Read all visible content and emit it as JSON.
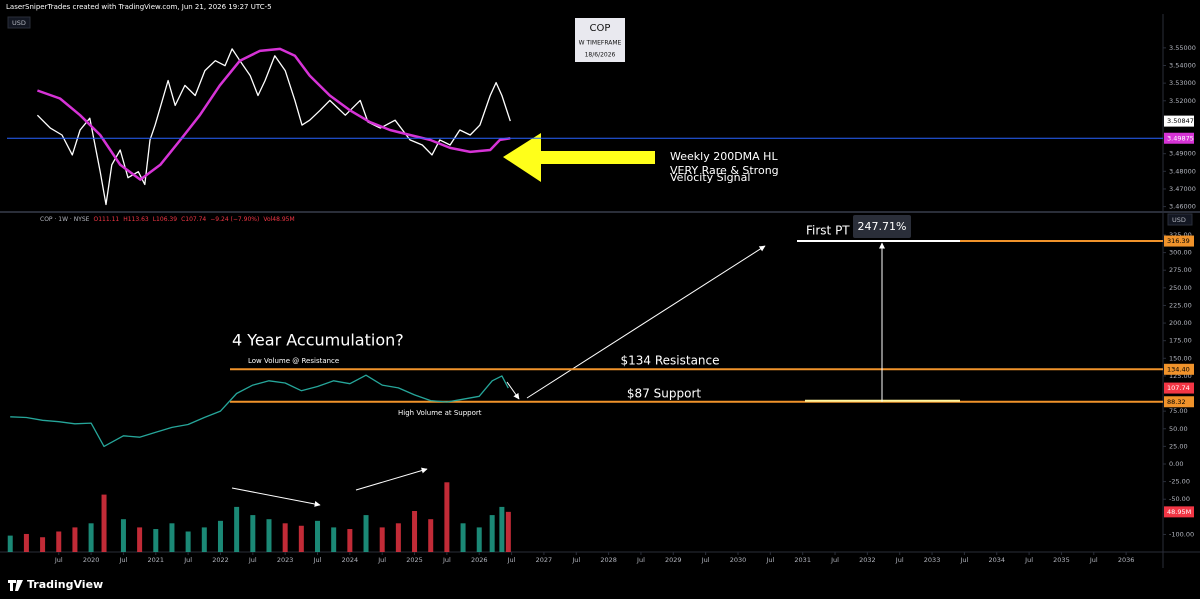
{
  "header": "LaserSniperTrades created with TradingView.com, Jun 21, 2026 19:27 UTC-5",
  "footer": "TradingView",
  "chart_data": [
    {
      "type": "line",
      "currency": "USD",
      "title": "COP",
      "subtitle": "W TIMEFRAME",
      "date_label": "18/6/2026",
      "annotations": [
        "Weekly 200DMA HL",
        "VERY Rare & Strong",
        "Velocity Signal"
      ],
      "xlim": [
        2018.7,
        2036.57
      ],
      "ylim": [
        3.4575,
        3.5675
      ],
      "yticks": [
        {
          "value": 3.46,
          "label": "3.46000"
        },
        {
          "value": 3.47,
          "label": "3.47000"
        },
        {
          "value": 3.48,
          "label": "3.48000"
        },
        {
          "value": 3.49,
          "label": "3.49000"
        },
        {
          "value": 3.52,
          "label": "3.52000"
        },
        {
          "value": 3.53,
          "label": "3.53000"
        },
        {
          "value": 3.54,
          "label": "3.54000"
        },
        {
          "value": 3.55,
          "label": "3.55000"
        }
      ],
      "baseline_color": "#2962ff",
      "series": [
        {
          "color": "#ffffff",
          "x": [
            2019.17,
            2019.37,
            2019.55,
            2019.71,
            2019.83,
            2019.98,
            2020.14,
            2020.23,
            2020.32,
            2020.45,
            2020.57,
            2020.73,
            2020.83,
            2020.91,
            2020.99,
            2021.1,
            2021.19,
            2021.3,
            2021.45,
            2021.61,
            2021.76,
            2021.92,
            2022.07,
            2022.18,
            2022.3,
            2022.46,
            2022.58,
            2022.69,
            2022.84,
            2023.0,
            2023.15,
            2023.26,
            2023.38,
            2023.54,
            2023.69,
            2023.93,
            2024.16,
            2024.28,
            2024.47,
            2024.7,
            2024.93,
            2025.12,
            2025.27,
            2025.39,
            2025.55,
            2025.7,
            2025.86,
            2026.01,
            2026.17,
            2026.26,
            2026.35,
            2026.48
          ],
          "values": [
            3.5118,
            3.5045,
            3.5006,
            3.4893,
            3.5034,
            3.5101,
            3.4798,
            3.4612,
            3.4837,
            3.4921,
            3.4764,
            3.4798,
            3.4725,
            3.4978,
            3.5062,
            3.5202,
            3.5315,
            3.5174,
            3.5287,
            3.523,
            3.5371,
            3.5427,
            3.5399,
            3.5494,
            3.5427,
            3.5343,
            3.523,
            3.5315,
            3.5455,
            3.5371,
            3.5202,
            3.5062,
            3.509,
            3.5146,
            3.5202,
            3.5118,
            3.5202,
            3.5079,
            3.5045,
            3.509,
            3.4978,
            3.4949,
            3.4893,
            3.4978,
            3.4949,
            3.5034,
            3.5006,
            3.5062,
            3.523,
            3.5303,
            3.523,
            3.50847
          ]
        },
        {
          "color": "#d633d6",
          "x": [
            2019.17,
            2019.52,
            2019.83,
            2020.14,
            2020.45,
            2020.76,
            2021.07,
            2021.38,
            2021.68,
            2021.99,
            2022.3,
            2022.61,
            2022.92,
            2023.15,
            2023.38,
            2023.69,
            2024.0,
            2024.31,
            2024.62,
            2024.93,
            2025.24,
            2025.55,
            2025.86,
            2026.17,
            2026.32,
            2026.48
          ],
          "values": [
            3.5258,
            3.5213,
            3.5118,
            3.5006,
            3.4837,
            3.4753,
            3.4837,
            3.4978,
            3.5118,
            3.5287,
            3.5427,
            3.5483,
            3.5494,
            3.5455,
            3.5343,
            3.523,
            3.5146,
            3.5079,
            3.5034,
            3.5006,
            3.4978,
            3.4933,
            3.491,
            3.4921,
            3.4978,
            3.49875
          ]
        }
      ]
    },
    {
      "type": "line",
      "currency": "USD",
      "legend_text": [
        "COP · 1W · NYSE",
        "O111.11",
        "H113.63",
        "L106.39",
        "C107.74",
        "−9.24 (−7.90%)",
        "Vol48.95M"
      ],
      "annotations": [
        "4 Year Accumulation?",
        "Low Volume @ Resistance",
        "$134 Resistance",
        "$87 Support",
        "High Volume at Support",
        "First PT",
        "247.71%"
      ],
      "xlim": [
        2018.7,
        2036.57
      ],
      "xticks": [
        {
          "value": 2019.5,
          "label": "Jul"
        },
        2020,
        {
          "value": 2020.5,
          "label": "Jul"
        },
        2021,
        {
          "value": 2021.5,
          "label": "Jul"
        },
        2022,
        {
          "value": 2022.5,
          "label": "Jul"
        },
        2023,
        {
          "value": 2023.5,
          "label": "Jul"
        },
        2024,
        {
          "value": 2024.5,
          "label": "Jul"
        },
        2025,
        {
          "value": 2025.5,
          "label": "Jul"
        },
        2026,
        {
          "value": 2026.5,
          "label": "Jul"
        },
        2027,
        {
          "value": 2027.5,
          "label": "Jul"
        },
        2028,
        {
          "value": 2028.5,
          "label": "Jul"
        },
        2029,
        {
          "value": 2029.5,
          "label": "Jul"
        },
        2030,
        {
          "value": 2030.5,
          "label": "Jul"
        },
        2031,
        {
          "value": 2031.5,
          "label": "Jul"
        },
        2032,
        {
          "value": 2032.5,
          "label": "Jul"
        },
        2033,
        {
          "value": 2033.5,
          "label": "Jul"
        },
        2034,
        {
          "value": 2034.5,
          "label": "Jul"
        },
        2035,
        {
          "value": 2035.5,
          "label": "Jul"
        },
        2036
      ],
      "ylim": [
        -124.9,
        356.2
      ],
      "yticks": [
        {
          "value": -100,
          "label": "-100.00"
        },
        {
          "value": -50,
          "label": "-50.00"
        },
        {
          "value": -25,
          "label": "-25.00"
        },
        {
          "value": 0,
          "label": "0.00"
        },
        {
          "value": 25,
          "label": "25.00"
        },
        {
          "value": 50,
          "label": "50.00"
        },
        {
          "value": 75,
          "label": "75.00"
        },
        {
          "value": 125,
          "label": "125.00"
        },
        {
          "value": 150,
          "label": "150.00"
        },
        {
          "value": 175,
          "label": "175.00"
        },
        {
          "value": 200,
          "label": "200.00"
        },
        {
          "value": 225,
          "label": "225.00"
        },
        {
          "value": 250,
          "label": "250.00"
        },
        {
          "value": 275,
          "label": "275.00"
        },
        {
          "value": 300,
          "label": "300.00"
        },
        {
          "value": 325,
          "label": "325.00"
        }
      ],
      "x": [
        2018.75,
        2019.0,
        2019.25,
        2019.5,
        2019.75,
        2020.0,
        2020.2,
        2020.5,
        2020.75,
        2021.0,
        2021.25,
        2021.5,
        2021.75,
        2022.0,
        2022.25,
        2022.5,
        2022.75,
        2023.0,
        2023.25,
        2023.5,
        2023.75,
        2024.0,
        2024.25,
        2024.5,
        2024.75,
        2025.0,
        2025.25,
        2025.5,
        2025.75,
        2026.0,
        2026.2,
        2026.35,
        2026.45
      ],
      "series": [
        {
          "color": "#26a69a",
          "values": [
            67,
            66,
            62,
            60,
            57,
            58,
            25,
            40,
            38,
            45,
            52,
            56,
            66,
            75,
            100,
            112,
            118,
            115,
            104,
            110,
            118,
            114,
            126,
            112,
            108,
            98,
            90,
            88,
            92,
            96,
            118,
            125,
            107.74
          ]
        }
      ],
      "last_price_color": "#f23645",
      "volume": {
        "colors": [
          "#22ab94",
          "#f23645"
        ],
        "values": [
          20,
          22,
          18,
          25,
          30,
          35,
          70,
          40,
          30,
          28,
          35,
          25,
          30,
          38,
          55,
          45,
          40,
          35,
          32,
          38,
          30,
          28,
          45,
          30,
          35,
          50,
          40,
          85,
          35,
          30,
          45,
          55,
          48.95
        ]
      },
      "volume_last_label": "48.95M",
      "level_color": "#f0932b",
      "levels": [
        316.39,
        {
          "value": 134.4,
          "label": "134.40"
        },
        88.32
      ]
    }
  ]
}
